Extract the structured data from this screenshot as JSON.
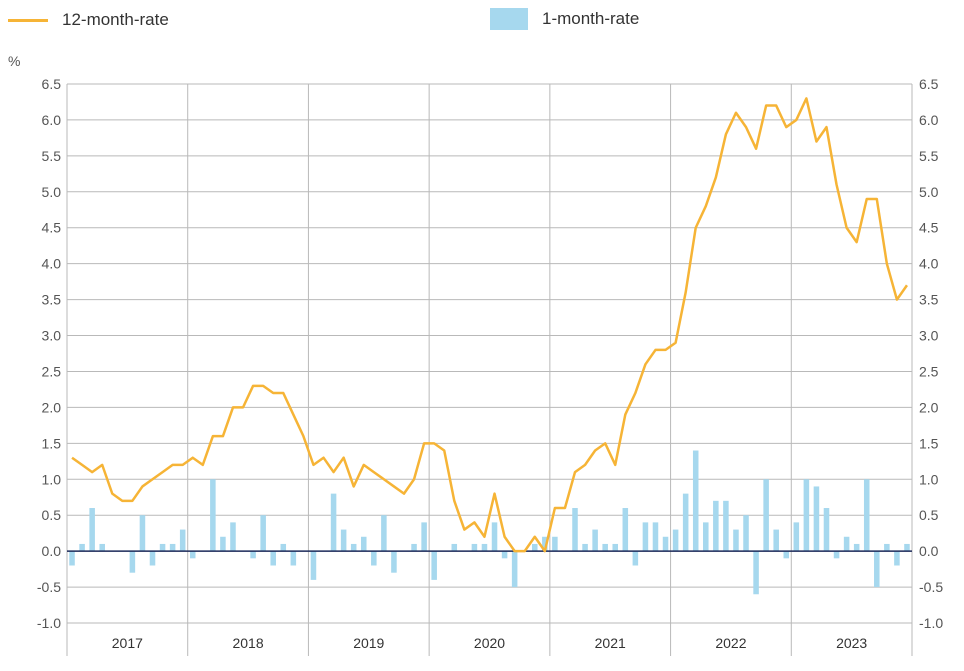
{
  "legend": {
    "line_label": "12-month-rate",
    "bar_label": "1-month-rate"
  },
  "colors": {
    "line": "#f6b436",
    "bar": "#a6d8ee",
    "grid": "#b9b9b9",
    "zero_line": "#1c2a5a"
  },
  "chart_data": {
    "type": "bar",
    "unit": "%",
    "ylim": [
      -1.0,
      6.5
    ],
    "yticks": [
      "6.5",
      "6.0",
      "5.5",
      "5.0",
      "4.5",
      "4.0",
      "3.5",
      "3.0",
      "2.5",
      "2.0",
      "1.5",
      "1.0",
      "0.5",
      "0.0",
      "-0.5",
      "-1.0"
    ],
    "years": [
      "2017",
      "2018",
      "2019",
      "2020",
      "2021",
      "2022",
      "2023"
    ],
    "x": [
      "2017-01",
      "2017-02",
      "2017-03",
      "2017-04",
      "2017-05",
      "2017-06",
      "2017-07",
      "2017-08",
      "2017-09",
      "2017-10",
      "2017-11",
      "2017-12",
      "2018-01",
      "2018-02",
      "2018-03",
      "2018-04",
      "2018-05",
      "2018-06",
      "2018-07",
      "2018-08",
      "2018-09",
      "2018-10",
      "2018-11",
      "2018-12",
      "2019-01",
      "2019-02",
      "2019-03",
      "2019-04",
      "2019-05",
      "2019-06",
      "2019-07",
      "2019-08",
      "2019-09",
      "2019-10",
      "2019-11",
      "2019-12",
      "2020-01",
      "2020-02",
      "2020-03",
      "2020-04",
      "2020-05",
      "2020-06",
      "2020-07",
      "2020-08",
      "2020-09",
      "2020-10",
      "2020-11",
      "2020-12",
      "2021-01",
      "2021-02",
      "2021-03",
      "2021-04",
      "2021-05",
      "2021-06",
      "2021-07",
      "2021-08",
      "2021-09",
      "2021-10",
      "2021-11",
      "2021-12",
      "2022-01",
      "2022-02",
      "2022-03",
      "2022-04",
      "2022-05",
      "2022-06",
      "2022-07",
      "2022-08",
      "2022-09",
      "2022-10",
      "2022-11",
      "2022-12",
      "2023-01",
      "2023-02",
      "2023-03",
      "2023-04",
      "2023-05",
      "2023-06",
      "2023-07",
      "2023-08",
      "2023-09",
      "2023-10",
      "2023-11",
      "2023-12"
    ],
    "series": [
      {
        "name": "12-month-rate",
        "type": "line",
        "values": [
          1.3,
          1.2,
          1.1,
          1.2,
          0.8,
          0.7,
          0.7,
          0.9,
          1.0,
          1.1,
          1.2,
          1.2,
          1.3,
          1.2,
          1.6,
          1.6,
          2.0,
          2.0,
          2.3,
          2.3,
          2.2,
          2.2,
          1.9,
          1.6,
          1.2,
          1.3,
          1.1,
          1.3,
          0.9,
          1.2,
          1.1,
          1.0,
          0.9,
          0.8,
          1.0,
          1.5,
          1.5,
          1.4,
          0.7,
          0.3,
          0.4,
          0.2,
          0.8,
          0.2,
          0.0,
          0.0,
          0.2,
          0.0,
          0.6,
          0.6,
          1.1,
          1.2,
          1.4,
          1.5,
          1.2,
          1.9,
          2.2,
          2.6,
          2.8,
          2.8,
          2.9,
          3.6,
          4.5,
          4.8,
          5.2,
          5.8,
          6.1,
          5.9,
          5.6,
          6.2,
          6.2,
          5.9,
          6.0,
          6.3,
          5.7,
          5.9,
          5.1,
          4.5,
          4.3,
          4.9,
          4.9,
          4.0,
          3.5,
          3.7
        ]
      },
      {
        "name": "1-month-rate",
        "type": "bar",
        "values": [
          -0.2,
          0.1,
          0.6,
          0.1,
          0.0,
          0.0,
          -0.3,
          0.5,
          -0.2,
          0.1,
          0.1,
          0.3,
          -0.1,
          0.0,
          1.0,
          0.2,
          0.4,
          0.0,
          -0.1,
          0.5,
          -0.2,
          0.1,
          -0.2,
          0.0,
          -0.4,
          0.0,
          0.8,
          0.3,
          0.1,
          0.2,
          -0.2,
          0.5,
          -0.3,
          0.0,
          0.1,
          0.4,
          -0.4,
          0.0,
          0.1,
          0.0,
          0.1,
          0.1,
          0.4,
          -0.1,
          -0.5,
          0.0,
          0.1,
          0.2,
          0.2,
          0.0,
          0.6,
          0.1,
          0.3,
          0.1,
          0.1,
          0.6,
          -0.2,
          0.4,
          0.4,
          0.2,
          0.3,
          0.8,
          1.4,
          0.4,
          0.7,
          0.7,
          0.3,
          0.5,
          -0.6,
          1.0,
          0.3,
          -0.1,
          0.4,
          1.0,
          0.9,
          0.6,
          -0.1,
          0.2,
          0.1,
          1.0,
          -0.5,
          0.1,
          -0.2,
          0.1
        ]
      }
    ]
  }
}
